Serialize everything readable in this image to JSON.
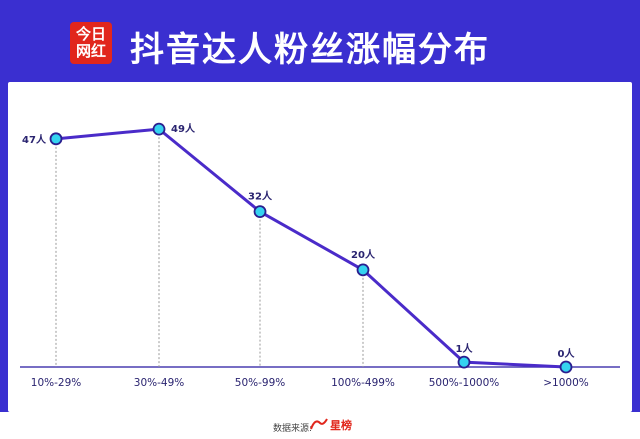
{
  "logo": {
    "line1": "今日",
    "line2": "网红"
  },
  "title": "抖音达人粉丝涨幅分布",
  "chart_data": {
    "type": "line",
    "title": "抖音达人粉丝涨幅分布",
    "categories": [
      "10%-29%",
      "30%-49%",
      "50%-99%",
      "100%-499%",
      "500%-1000%",
      ">1000%"
    ],
    "values": [
      47,
      49,
      32,
      20,
      1,
      0
    ],
    "data_labels": [
      "47人",
      "49人",
      "32人",
      "20人",
      "1人",
      "0人"
    ],
    "ylim": [
      0,
      55
    ],
    "grid": false,
    "colors": {
      "line": "#4a2bc9",
      "marker": "#35d3f0",
      "marker_stroke": "#2a1e8f"
    }
  },
  "footer": {
    "source_label": "数据来源:",
    "brand": "星榜"
  }
}
